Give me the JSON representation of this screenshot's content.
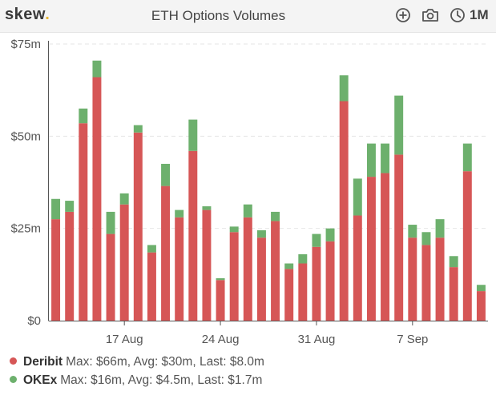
{
  "header": {
    "logo_text": "skew",
    "logo_dot": ".",
    "title": "ETH Options Volumes",
    "tools": [
      {
        "icon": "add-circle-icon"
      },
      {
        "icon": "camera-icon"
      },
      {
        "icon": "clock-icon"
      }
    ],
    "period": "1M"
  },
  "colors": {
    "deribit": "#d65656",
    "okex": "#6db06d",
    "axis": "#555555",
    "grid": "#e6e6e6",
    "logo_dot": "#e8b531"
  },
  "legend": [
    {
      "series": "Deribit",
      "stats": "Max: $66m, Avg: $30m, Last: $8.0m"
    },
    {
      "series": "OKEx",
      "stats": "Max: $16m, Avg: $4.5m, Last: $1.7m"
    }
  ],
  "chart_data": {
    "type": "bar",
    "stacked": true,
    "y_ticks": [
      {
        "value": 0,
        "label": "$0"
      },
      {
        "value": 25,
        "label": "$25m"
      },
      {
        "value": 50,
        "label": "$50m"
      },
      {
        "value": 75,
        "label": "$75m"
      }
    ],
    "x_ticks": [
      {
        "index": 5,
        "label": "17 Aug"
      },
      {
        "index": 12,
        "label": "24 Aug"
      },
      {
        "index": 19,
        "label": "31 Aug"
      },
      {
        "index": 26,
        "label": "7 Sep"
      }
    ],
    "ylim": [
      0,
      75
    ],
    "grid": true,
    "legend_position": "bottom-left",
    "series": [
      {
        "name": "Deribit",
        "values": [
          27.5,
          29.5,
          53.5,
          66,
          23.5,
          31.5,
          51,
          18.5,
          36.5,
          28,
          46,
          30,
          11,
          24,
          28,
          22.5,
          27,
          14,
          15.5,
          20,
          21.5,
          59.5,
          28.5,
          39,
          40,
          45,
          22.5,
          20.5,
          22.5,
          14.5,
          40.5,
          8
        ]
      },
      {
        "name": "OKEx",
        "values": [
          5.5,
          3,
          4,
          4.5,
          6,
          3,
          2,
          2,
          6,
          2,
          8.5,
          1,
          0.5,
          1.5,
          3.5,
          2,
          2.5,
          1.5,
          2.5,
          3.5,
          3.5,
          7,
          10,
          9,
          8,
          16,
          3.5,
          3.5,
          5,
          3,
          7.5,
          1.7
        ]
      }
    ]
  }
}
